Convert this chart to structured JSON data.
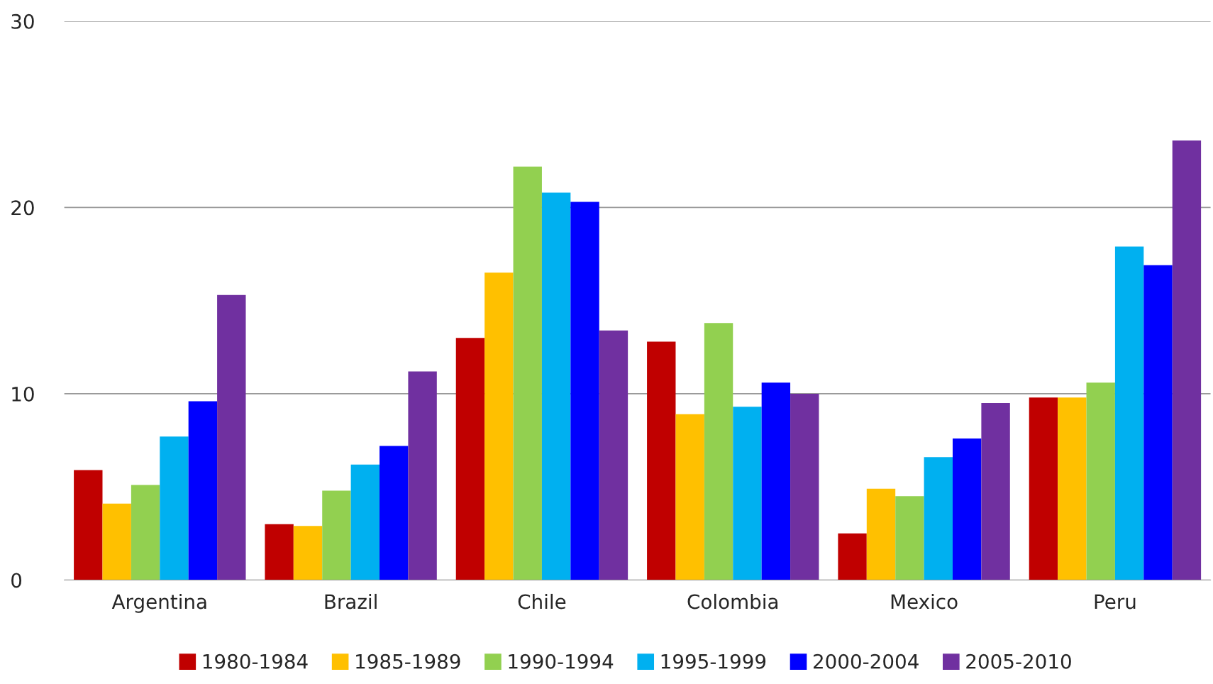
{
  "chart_data": {
    "type": "bar",
    "categories": [
      "Argentina",
      "Brazil",
      "Chile",
      "Colombia",
      "Mexico",
      "Peru"
    ],
    "series": [
      {
        "name": "1980-1984",
        "color": "#c00000",
        "values": [
          5.9,
          3.0,
          13.0,
          12.8,
          2.5,
          9.8
        ]
      },
      {
        "name": "1985-1989",
        "color": "#ffc000",
        "values": [
          4.1,
          2.9,
          16.5,
          8.9,
          4.9,
          9.8
        ]
      },
      {
        "name": "1990-1994",
        "color": "#92d050",
        "values": [
          5.1,
          4.8,
          22.2,
          13.8,
          4.5,
          10.6
        ]
      },
      {
        "name": "1995-1999",
        "color": "#00b0f0",
        "values": [
          7.7,
          6.2,
          20.8,
          9.3,
          6.6,
          17.9
        ]
      },
      {
        "name": "2000-2004",
        "color": "#0000ff",
        "values": [
          9.6,
          7.2,
          20.3,
          10.6,
          7.6,
          16.9
        ]
      },
      {
        "name": "2005-2010",
        "color": "#7030a0",
        "values": [
          15.3,
          11.2,
          13.4,
          10.0,
          9.5,
          23.6
        ]
      }
    ],
    "ylim": [
      0,
      30
    ],
    "yticks": [
      0,
      10,
      20,
      30
    ],
    "grid": "y",
    "legend": "bottom"
  }
}
